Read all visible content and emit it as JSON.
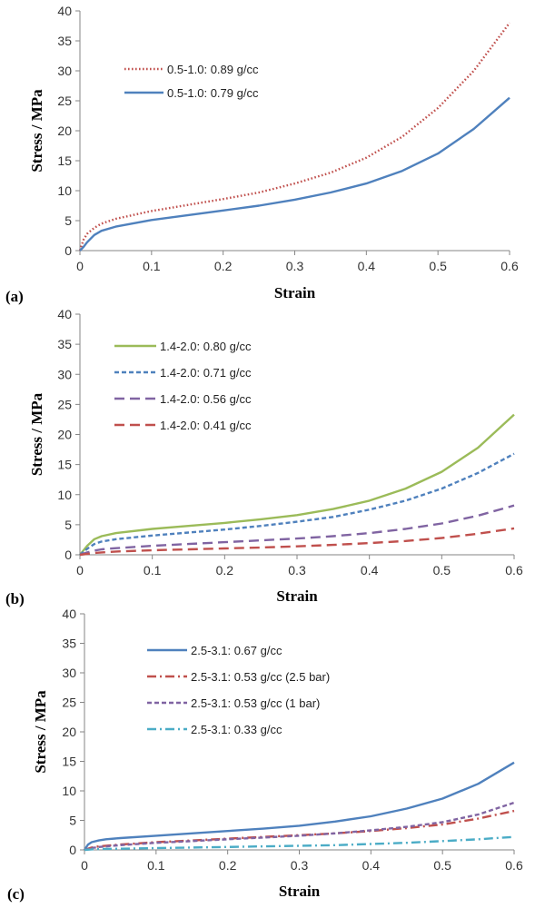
{
  "chart_data": [
    {
      "type": "line",
      "panel_label": "(a)",
      "title": "",
      "xlabel": "Strain",
      "ylabel": "Stress / MPa",
      "xlim": [
        0,
        0.6
      ],
      "ylim": [
        0,
        40
      ],
      "xticks": [
        "0",
        "0.1",
        "0.2",
        "0.3",
        "0.4",
        "0.5",
        "0.6"
      ],
      "yticks": [
        "0",
        "5",
        "10",
        "15",
        "20",
        "25",
        "30",
        "35",
        "40"
      ],
      "grid": false,
      "legend_position": "top-left",
      "series": [
        {
          "name": "0.5-1.0: 0.89 g/cc",
          "color": "#c0504d",
          "dash": "dotted",
          "x": [
            0,
            0.005,
            0.01,
            0.02,
            0.03,
            0.05,
            0.1,
            0.15,
            0.2,
            0.25,
            0.3,
            0.35,
            0.4,
            0.45,
            0.5,
            0.55,
            0.6
          ],
          "y": [
            0,
            1.8,
            2.8,
            3.8,
            4.5,
            5.3,
            6.6,
            7.6,
            8.6,
            9.7,
            11.2,
            13.0,
            15.5,
            19.0,
            23.8,
            30.0,
            38.0
          ]
        },
        {
          "name": "0.5-1.0: 0.79 g/cc",
          "color": "#4f81bd",
          "dash": "solid",
          "x": [
            0,
            0.005,
            0.01,
            0.02,
            0.03,
            0.05,
            0.1,
            0.15,
            0.2,
            0.25,
            0.3,
            0.35,
            0.4,
            0.45,
            0.5,
            0.55,
            0.6
          ],
          "y": [
            0,
            0.6,
            1.4,
            2.6,
            3.3,
            4.0,
            5.1,
            5.9,
            6.7,
            7.5,
            8.5,
            9.7,
            11.2,
            13.3,
            16.2,
            20.3,
            25.5
          ]
        }
      ]
    },
    {
      "type": "line",
      "panel_label": "(b)",
      "title": "",
      "xlabel": "Strain",
      "ylabel": "Stress / MPa",
      "xlim": [
        0,
        0.6
      ],
      "ylim": [
        0,
        40
      ],
      "xticks": [
        "0",
        "0.1",
        "0.2",
        "0.3",
        "0.4",
        "0.5",
        "0.6"
      ],
      "yticks": [
        "0",
        "5",
        "10",
        "15",
        "20",
        "25",
        "30",
        "35",
        "40"
      ],
      "grid": false,
      "legend_position": "top-left",
      "series": [
        {
          "name": "1.4-2.0: 0.80 g/cc",
          "color": "#9bbb59",
          "dash": "solid",
          "x": [
            0,
            0.01,
            0.02,
            0.03,
            0.05,
            0.1,
            0.15,
            0.2,
            0.25,
            0.3,
            0.35,
            0.4,
            0.45,
            0.5,
            0.55,
            0.6
          ],
          "y": [
            0,
            1.5,
            2.6,
            3.1,
            3.6,
            4.3,
            4.8,
            5.3,
            5.9,
            6.6,
            7.6,
            9.0,
            11.0,
            13.8,
            17.8,
            23.3
          ]
        },
        {
          "name": "1.4-2.0: 0.71 g/cc",
          "color": "#4f81bd",
          "dash": "short-dash",
          "x": [
            0,
            0.01,
            0.02,
            0.03,
            0.05,
            0.1,
            0.15,
            0.2,
            0.25,
            0.3,
            0.35,
            0.4,
            0.45,
            0.5,
            0.55,
            0.6
          ],
          "y": [
            0,
            1.0,
            1.8,
            2.2,
            2.6,
            3.2,
            3.7,
            4.2,
            4.8,
            5.5,
            6.3,
            7.5,
            9.0,
            11.0,
            13.6,
            16.8
          ]
        },
        {
          "name": "1.4-2.0: 0.56 g/cc",
          "color": "#8064a2",
          "dash": "long-dash",
          "x": [
            0,
            0.01,
            0.02,
            0.03,
            0.05,
            0.1,
            0.15,
            0.2,
            0.25,
            0.3,
            0.35,
            0.4,
            0.45,
            0.5,
            0.55,
            0.6
          ],
          "y": [
            0,
            0.4,
            0.7,
            0.9,
            1.1,
            1.5,
            1.8,
            2.1,
            2.4,
            2.7,
            3.1,
            3.6,
            4.3,
            5.2,
            6.5,
            8.2
          ]
        },
        {
          "name": "1.4-2.0: 0.41 g/cc",
          "color": "#c0504d",
          "dash": "long-dash",
          "x": [
            0,
            0.01,
            0.02,
            0.03,
            0.05,
            0.1,
            0.15,
            0.2,
            0.25,
            0.3,
            0.35,
            0.4,
            0.45,
            0.5,
            0.55,
            0.6
          ],
          "y": [
            0,
            0.15,
            0.3,
            0.4,
            0.55,
            0.75,
            0.9,
            1.05,
            1.2,
            1.4,
            1.65,
            1.95,
            2.3,
            2.8,
            3.5,
            4.4
          ]
        }
      ]
    },
    {
      "type": "line",
      "panel_label": "(c)",
      "title": "",
      "xlabel": "Strain",
      "ylabel": "Stress / MPa",
      "xlim": [
        0,
        0.6
      ],
      "ylim": [
        0,
        40
      ],
      "xticks": [
        "0",
        "0.1",
        "0.2",
        "0.3",
        "0.4",
        "0.5",
        "0.6"
      ],
      "yticks": [
        "0",
        "5",
        "10",
        "15",
        "20",
        "25",
        "30",
        "35",
        "40"
      ],
      "grid": false,
      "legend_position": "top-left",
      "series": [
        {
          "name": "2.5-3.1: 0.67 g/cc",
          "color": "#4f81bd",
          "dash": "solid",
          "x": [
            0,
            0.005,
            0.01,
            0.02,
            0.03,
            0.05,
            0.1,
            0.15,
            0.2,
            0.25,
            0.3,
            0.35,
            0.4,
            0.45,
            0.5,
            0.55,
            0.6
          ],
          "y": [
            0,
            0.9,
            1.3,
            1.6,
            1.8,
            2.0,
            2.4,
            2.8,
            3.2,
            3.6,
            4.1,
            4.8,
            5.7,
            7.0,
            8.7,
            11.2,
            14.8
          ]
        },
        {
          "name": "2.5-3.1: 0.53 g/cc (2.5 bar)",
          "color": "#c0504d",
          "dash": "dash-dot",
          "x": [
            0,
            0.01,
            0.02,
            0.05,
            0.1,
            0.15,
            0.2,
            0.25,
            0.3,
            0.35,
            0.4,
            0.45,
            0.5,
            0.55,
            0.6
          ],
          "y": [
            0,
            0.4,
            0.6,
            0.9,
            1.3,
            1.6,
            1.9,
            2.2,
            2.5,
            2.8,
            3.2,
            3.7,
            4.3,
            5.3,
            6.6
          ]
        },
        {
          "name": "2.5-3.1: 0.53 g/cc (1 bar)",
          "color": "#8064a2",
          "dash": "short-dash",
          "x": [
            0,
            0.01,
            0.02,
            0.05,
            0.1,
            0.15,
            0.2,
            0.25,
            0.3,
            0.35,
            0.4,
            0.45,
            0.5,
            0.55,
            0.6
          ],
          "y": [
            0,
            0.3,
            0.5,
            0.8,
            1.2,
            1.5,
            1.8,
            2.1,
            2.4,
            2.8,
            3.3,
            3.9,
            4.7,
            6.0,
            8.0
          ]
        },
        {
          "name": "2.5-3.1: 0.33 g/cc",
          "color": "#4bacc6",
          "dash": "dash-dot",
          "x": [
            0,
            0.01,
            0.02,
            0.05,
            0.1,
            0.15,
            0.2,
            0.25,
            0.3,
            0.35,
            0.4,
            0.45,
            0.5,
            0.55,
            0.6
          ],
          "y": [
            0,
            0.1,
            0.15,
            0.2,
            0.3,
            0.4,
            0.5,
            0.6,
            0.7,
            0.8,
            1.0,
            1.2,
            1.5,
            1.8,
            2.2
          ]
        }
      ]
    }
  ]
}
